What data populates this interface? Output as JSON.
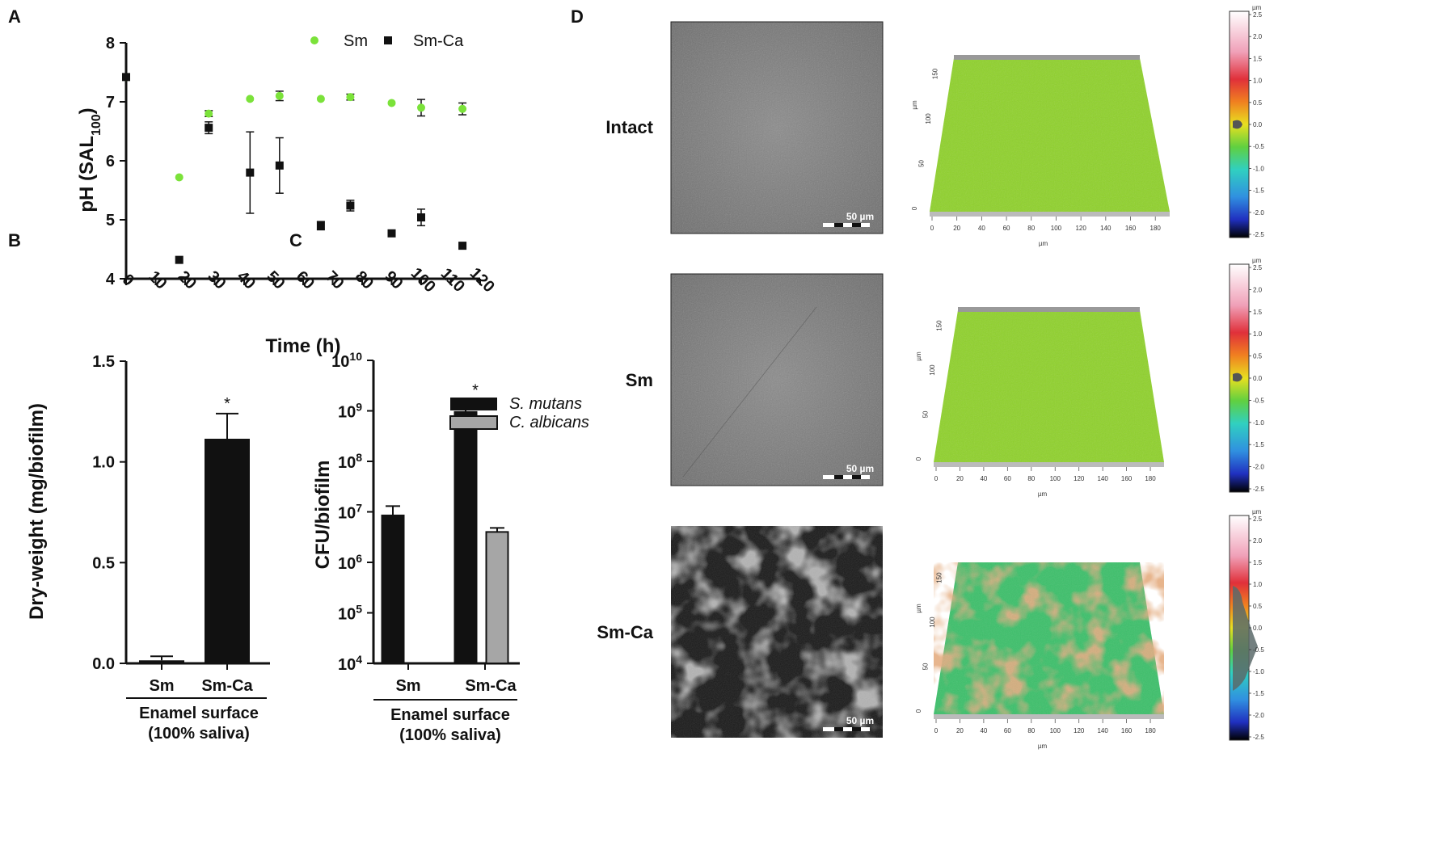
{
  "panels": {
    "a": {
      "letter": "A",
      "xlabel": "Time (h)",
      "ylabel_main": "pH (SAL",
      "ylabel_sub": "100",
      "ylabel_end": ")",
      "legend": [
        "Sm",
        "Sm-Ca"
      ]
    },
    "b": {
      "letter": "B",
      "ylabel": "Dry-weight (mg/biofilm)",
      "group_label_1": "Enamel surface",
      "group_label_2": "(100% saliva)",
      "star": "*"
    },
    "c": {
      "letter": "C",
      "ylabel": "CFU/biofilm",
      "group_label_1": "Enamel surface",
      "group_label_2": "(100% saliva)",
      "legend": [
        "S. mutans",
        "C. albicans"
      ],
      "star": "*"
    },
    "d": {
      "letter": "D",
      "rows": [
        "Intact",
        "Sm",
        "Sm-Ca"
      ],
      "scale_bar": "50 µm",
      "unit": "µm",
      "x_ticks": [
        "0",
        "20",
        "40",
        "60",
        "80",
        "100",
        "120",
        "140",
        "160",
        "180"
      ],
      "y_ticks": [
        "0",
        "50",
        "100",
        "150"
      ],
      "colorbar_ticks_1": [
        "2.5",
        "2.0",
        "1.5",
        "1.0",
        "0.5",
        "0.0",
        "-0.5",
        "-1.0",
        "-1.5",
        "-2.0",
        "-2.5"
      ],
      "colorbar_ticks_3": [
        "2.5",
        "2.0",
        "1.5",
        "1.0",
        "0.5",
        "0.0",
        "-0.5",
        "-1.0",
        "-1.5",
        "-2.0",
        "-2.5"
      ]
    }
  },
  "colors": {
    "sm_green": "#7be23a",
    "black": "#111111",
    "calbicans_gray": "#a6a6a6",
    "surface_green": "#8fd22a"
  },
  "chart_data": [
    {
      "type": "scatter",
      "xlabel": "Time (h)",
      "ylabel": "pH (SAL100)",
      "xlim": [
        0,
        120
      ],
      "ylim": [
        4,
        8
      ],
      "x_ticks": [
        0,
        10,
        20,
        30,
        40,
        50,
        60,
        70,
        80,
        90,
        100,
        110,
        120
      ],
      "y_ticks": [
        4,
        5,
        6,
        7,
        8
      ],
      "legend_position": "top-right",
      "series": [
        {
          "name": "Sm",
          "color": "#7be23a",
          "marker": "circle",
          "points": [
            {
              "x": 0,
              "y": 7.42,
              "err": 0.0
            },
            {
              "x": 18,
              "y": 5.72,
              "err": 0.0
            },
            {
              "x": 28,
              "y": 6.8,
              "err": 0.05
            },
            {
              "x": 42,
              "y": 7.05,
              "err": 0.0
            },
            {
              "x": 52,
              "y": 7.1,
              "err": 0.08
            },
            {
              "x": 66,
              "y": 7.05,
              "err": 0.0
            },
            {
              "x": 76,
              "y": 7.08,
              "err": 0.05
            },
            {
              "x": 90,
              "y": 6.98,
              "err": 0.0
            },
            {
              "x": 100,
              "y": 6.9,
              "err": 0.14
            },
            {
              "x": 114,
              "y": 6.88,
              "err": 0.1
            }
          ]
        },
        {
          "name": "Sm-Ca",
          "color": "#111111",
          "marker": "square",
          "points": [
            {
              "x": 0,
              "y": 7.42,
              "err": 0.0
            },
            {
              "x": 18,
              "y": 4.32,
              "err": 0.0
            },
            {
              "x": 28,
              "y": 6.56,
              "err": 0.1
            },
            {
              "x": 42,
              "y": 5.8,
              "err": 0.69
            },
            {
              "x": 52,
              "y": 5.92,
              "err": 0.47
            },
            {
              "x": 66,
              "y": 4.9,
              "err": 0.07
            },
            {
              "x": 76,
              "y": 5.24,
              "err": 0.09
            },
            {
              "x": 90,
              "y": 4.77,
              "err": 0.05
            },
            {
              "x": 100,
              "y": 5.04,
              "err": 0.14
            },
            {
              "x": 114,
              "y": 4.56,
              "err": 0.0
            }
          ]
        }
      ]
    },
    {
      "type": "bar",
      "categories": [
        "Sm",
        "Sm-Ca"
      ],
      "values": [
        0.015,
        1.115
      ],
      "errors": [
        0.02,
        0.125
      ],
      "ylabel": "Dry-weight (mg/biofilm)",
      "ylim": [
        0,
        1.5
      ],
      "y_ticks": [
        0.0,
        0.5,
        1.0,
        1.5
      ],
      "y_tick_labels": [
        "0.0",
        "0.5",
        "1.0",
        "1.5"
      ],
      "significance": "*"
    },
    {
      "type": "bar",
      "categories": [
        "Sm",
        "Sm-Ca"
      ],
      "scale": "log",
      "ylabel": "CFU/biofilm",
      "ylim": [
        10000,
        10000000000
      ],
      "y_ticks": [
        4,
        5,
        6,
        7,
        8,
        9,
        10
      ],
      "legend_position": "top-right",
      "series": [
        {
          "name": "S. mutans",
          "color": "#111111",
          "values": [
            8500000,
            950000000
          ],
          "errors_upper": [
            13000000,
            1600000000
          ]
        },
        {
          "name": "C. albicans",
          "color": "#a6a6a6",
          "values": [
            null,
            4000000
          ],
          "errors_upper": [
            null,
            4800000
          ]
        }
      ],
      "significance": "*"
    }
  ]
}
